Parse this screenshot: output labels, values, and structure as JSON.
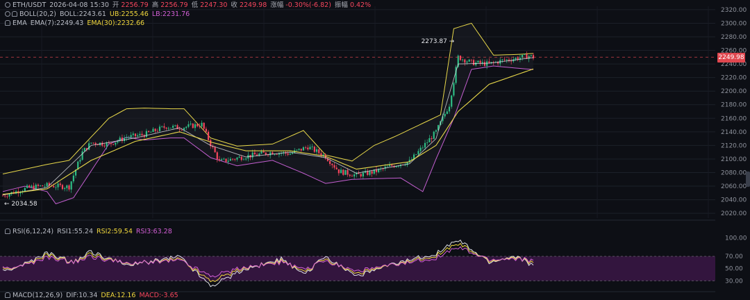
{
  "header": {
    "symbol": "ETH/USDT",
    "datetime": "2026-04-08 15:30",
    "open_label": "开",
    "open": "2256.79",
    "high_label": "高",
    "high": "2256.79",
    "low_label": "低",
    "low": "2247.30",
    "close_label": "收",
    "close": "2249.98",
    "change_label": "涨幅",
    "change": "-0.30%(-6.82)",
    "amp_label": "振幅",
    "amp": "0.42%"
  },
  "boll": {
    "name": "BOLL(20,2)",
    "mid": "BOLL:2243.61",
    "ub": "UB:2255.46",
    "lb": "LB:2231.76"
  },
  "ema": {
    "name": "EMA",
    "ema7": "EMA(7):2249.43",
    "ema30": "EMA(30):2232.66"
  },
  "rsi_header": {
    "name": "RSI(6,12,24)",
    "rsi1": "RSI1:55.24",
    "rsi2": "RSI2:59.54",
    "rsi3": "RSI3:63.28"
  },
  "macd_header": {
    "name": "MACD(12,26,9)",
    "dif": "DIF:10.34",
    "dea": "DEA:12.16",
    "macd": "MACD:-3.65"
  },
  "current_price_label": "2249.98",
  "colors": {
    "background": "#0d0f15",
    "up": "#2ebd85",
    "down": "#f6465d",
    "boll_band": "#e8d84a",
    "boll_mid": "#c45fd1",
    "ema7": "#dfe1e6",
    "ema30": "#e8d84a",
    "rsi_zone": "#3b1645",
    "price_tag": "#e0474f"
  },
  "chart_data": [
    {
      "type": "candlestick",
      "title": "ETH/USDT",
      "y_ticks": [
        2020,
        2040,
        2060,
        2080,
        2100,
        2120,
        2140,
        2160,
        2180,
        2200,
        2220,
        2240,
        2260,
        2280,
        2300,
        2320
      ],
      "ylim": [
        2013,
        2325
      ],
      "grid": true,
      "annotations": [
        {
          "text": "2034.58",
          "value": 2034.58
        },
        {
          "text": "2273.87",
          "value": 2273.87
        }
      ],
      "price_path": [
        [
          0,
          2046
        ],
        [
          6,
          2058
        ],
        [
          10,
          2061
        ],
        [
          15,
          2059
        ],
        [
          18,
          2110
        ],
        [
          20,
          2124
        ],
        [
          24,
          2122
        ],
        [
          28,
          2132
        ],
        [
          32,
          2136
        ],
        [
          37,
          2148
        ],
        [
          40,
          2146
        ],
        [
          45,
          2151
        ],
        [
          47,
          2122
        ],
        [
          49,
          2096
        ],
        [
          55,
          2104
        ],
        [
          61,
          2110
        ],
        [
          65,
          2108
        ],
        [
          69,
          2118
        ],
        [
          73,
          2104
        ],
        [
          76,
          2082
        ],
        [
          80,
          2076
        ],
        [
          84,
          2081
        ],
        [
          88,
          2090
        ],
        [
          92,
          2096
        ],
        [
          95,
          2118
        ],
        [
          98,
          2140
        ],
        [
          101,
          2180
        ],
        [
          103,
          2250
        ],
        [
          106,
          2242
        ],
        [
          110,
          2240
        ],
        [
          113,
          2245
        ],
        [
          116,
          2248
        ],
        [
          119,
          2252
        ],
        [
          120,
          2249.98
        ]
      ],
      "boll_ub_path": [
        [
          0,
          2078
        ],
        [
          10,
          2092
        ],
        [
          15,
          2098
        ],
        [
          24,
          2160
        ],
        [
          28,
          2174
        ],
        [
          32,
          2175
        ],
        [
          38,
          2174
        ],
        [
          41,
          2174
        ],
        [
          47,
          2131
        ],
        [
          53,
          2119
        ],
        [
          61,
          2122
        ],
        [
          68,
          2142
        ],
        [
          73,
          2106
        ],
        [
          79,
          2097
        ],
        [
          84,
          2120
        ],
        [
          89,
          2134
        ],
        [
          99,
          2165
        ],
        [
          102,
          2292
        ],
        [
          106,
          2300
        ],
        [
          111,
          2253
        ],
        [
          116,
          2254
        ],
        [
          120,
          2255.46
        ]
      ],
      "boll_lb_path": [
        [
          0,
          2052
        ],
        [
          5,
          2060
        ],
        [
          10,
          2052
        ],
        [
          12,
          2034
        ],
        [
          16,
          2043
        ],
        [
          24,
          2122
        ],
        [
          28,
          2132
        ],
        [
          32,
          2128
        ],
        [
          38,
          2131
        ],
        [
          41,
          2131
        ],
        [
          47,
          2102
        ],
        [
          53,
          2090
        ],
        [
          61,
          2098
        ],
        [
          68,
          2079
        ],
        [
          73,
          2064
        ],
        [
          79,
          2070
        ],
        [
          84,
          2071
        ],
        [
          90,
          2072
        ],
        [
          95,
          2052
        ],
        [
          98,
          2100
        ],
        [
          102,
          2160
        ],
        [
          106,
          2232
        ],
        [
          111,
          2237
        ],
        [
          116,
          2234
        ],
        [
          120,
          2231.76
        ]
      ],
      "ema7_path": [
        [
          0,
          2047
        ],
        [
          10,
          2058
        ],
        [
          20,
          2120
        ],
        [
          30,
          2131
        ],
        [
          40,
          2146
        ],
        [
          47,
          2120
        ],
        [
          55,
          2103
        ],
        [
          65,
          2110
        ],
        [
          73,
          2102
        ],
        [
          80,
          2079
        ],
        [
          92,
          2093
        ],
        [
          98,
          2130
        ],
        [
          103,
          2240
        ],
        [
          110,
          2241
        ],
        [
          120,
          2249.43
        ]
      ],
      "ema30_path": [
        [
          0,
          2048
        ],
        [
          10,
          2056
        ],
        [
          20,
          2098
        ],
        [
          30,
          2126
        ],
        [
          40,
          2140
        ],
        [
          47,
          2125
        ],
        [
          55,
          2112
        ],
        [
          65,
          2112
        ],
        [
          73,
          2104
        ],
        [
          80,
          2085
        ],
        [
          92,
          2096
        ],
        [
          98,
          2120
        ],
        [
          103,
          2170
        ],
        [
          110,
          2210
        ],
        [
          120,
          2232.66
        ]
      ]
    },
    {
      "type": "line",
      "title": "RSI(6,12,24)",
      "y_ticks": [
        30,
        50,
        70,
        100
      ],
      "ylim": [
        18,
        112
      ],
      "bands": [
        30,
        70
      ],
      "series": [
        {
          "name": "RSI1",
          "color": "#dfe1e6",
          "path": [
            [
              0,
              45
            ],
            [
              6,
              60
            ],
            [
              10,
              75
            ],
            [
              16,
              60
            ],
            [
              20,
              78
            ],
            [
              28,
              55
            ],
            [
              32,
              60
            ],
            [
              40,
              70
            ],
            [
              47,
              22
            ],
            [
              55,
              50
            ],
            [
              63,
              65
            ],
            [
              68,
              40
            ],
            [
              73,
              70
            ],
            [
              80,
              38
            ],
            [
              90,
              60
            ],
            [
              98,
              75
            ],
            [
              103,
              96
            ],
            [
              110,
              60
            ],
            [
              116,
              70
            ],
            [
              120,
              55.24
            ]
          ]
        },
        {
          "name": "RSI2",
          "color": "#f0d73c",
          "path": [
            [
              0,
              48
            ],
            [
              6,
              58
            ],
            [
              10,
              72
            ],
            [
              16,
              60
            ],
            [
              20,
              74
            ],
            [
              28,
              57
            ],
            [
              32,
              60
            ],
            [
              40,
              66
            ],
            [
              47,
              30
            ],
            [
              55,
              52
            ],
            [
              63,
              62
            ],
            [
              68,
              44
            ],
            [
              73,
              66
            ],
            [
              80,
              42
            ],
            [
              90,
              58
            ],
            [
              98,
              72
            ],
            [
              103,
              90
            ],
            [
              110,
              62
            ],
            [
              116,
              68
            ],
            [
              120,
              59.54
            ]
          ]
        },
        {
          "name": "RSI3",
          "color": "#d35fd6",
          "path": [
            [
              0,
              50
            ],
            [
              6,
              57
            ],
            [
              10,
              68
            ],
            [
              16,
              60
            ],
            [
              20,
              70
            ],
            [
              28,
              58
            ],
            [
              32,
              60
            ],
            [
              40,
              64
            ],
            [
              47,
              38
            ],
            [
              55,
              53
            ],
            [
              63,
              60
            ],
            [
              68,
              48
            ],
            [
              73,
              63
            ],
            [
              80,
              46
            ],
            [
              90,
              57
            ],
            [
              98,
              68
            ],
            [
              103,
              84
            ],
            [
              110,
              64
            ],
            [
              116,
              66
            ],
            [
              120,
              63.28
            ]
          ]
        }
      ]
    }
  ]
}
